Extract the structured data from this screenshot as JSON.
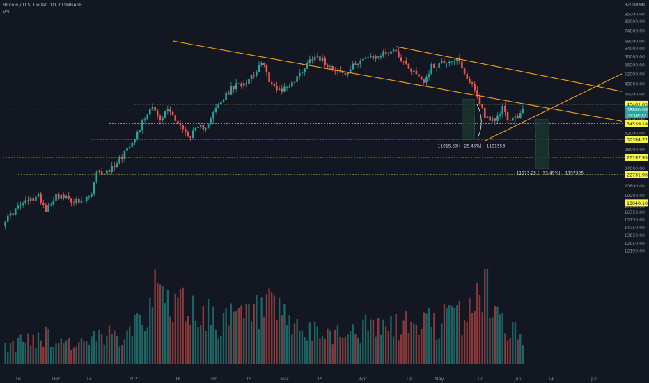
{
  "header": {
    "symbol_line": "Bitcoin / U.S. Dollar, 1D, COINBASE",
    "indicator": "Vol"
  },
  "colors": {
    "background": "#131722",
    "up": "#26a69a",
    "down": "#ef5350",
    "trendline": "#f7a21b",
    "level_line": "#c8c85a",
    "level_label_bg": "#f5f542",
    "current_label_bg": "#26a69a"
  },
  "chart_data": {
    "type": "candlestick",
    "price_scale": "log",
    "ylim": [
      11000,
      92000
    ],
    "currency_label": "USD",
    "y_ticks": [
      92000,
      85000,
      80000,
      74000,
      68000,
      64000,
      60000,
      56000,
      52000,
      48000,
      44000,
      40000,
      36000,
      32000,
      28000,
      24000,
      20800,
      19200,
      17600,
      16750,
      15750,
      14750,
      13850,
      12950,
      12190
    ],
    "x_ticks": [
      "16",
      "Dec",
      "14",
      "2021",
      "18",
      "Feb",
      "15",
      "Mar",
      "15",
      "Apr",
      "19",
      "May",
      "17",
      "Jun",
      "14",
      "Jul"
    ],
    "x_tick_dates": [
      "2020-11-16",
      "2020-12-01",
      "2020-12-14",
      "2021-01-01",
      "2021-01-18",
      "2021-02-01",
      "2021-02-15",
      "2021-03-01",
      "2021-03-15",
      "2021-04-01",
      "2021-04-19",
      "2021-05-01",
      "2021-05-17",
      "2021-06-01",
      "2021-06-14",
      "2021-07-01"
    ],
    "x_range": [
      "2020-11-10",
      "2021-07-12"
    ],
    "price_anchors": [
      [
        "2020-11-10",
        15300
      ],
      [
        "2020-11-17",
        17700
      ],
      [
        "2020-11-24",
        19100
      ],
      [
        "2020-11-27",
        17100
      ],
      [
        "2020-12-01",
        19200
      ],
      [
        "2020-12-11",
        18000
      ],
      [
        "2020-12-15",
        19300
      ],
      [
        "2020-12-17",
        22800
      ],
      [
        "2020-12-22",
        23500
      ],
      [
        "2020-12-27",
        26500
      ],
      [
        "2021-01-02",
        32000
      ],
      [
        "2021-01-08",
        40500
      ],
      [
        "2021-01-11",
        35000
      ],
      [
        "2021-01-14",
        39000
      ],
      [
        "2021-01-22",
        31000
      ],
      [
        "2021-01-26",
        33000
      ],
      [
        "2021-01-29",
        34000
      ],
      [
        "2021-02-08",
        46000
      ],
      [
        "2021-02-14",
        49000
      ],
      [
        "2021-02-21",
        57000
      ],
      [
        "2021-02-23",
        48000
      ],
      [
        "2021-02-28",
        45500
      ],
      [
        "2021-03-05",
        49000
      ],
      [
        "2021-03-13",
        61000
      ],
      [
        "2021-03-17",
        57000
      ],
      [
        "2021-03-25",
        51500
      ],
      [
        "2021-03-31",
        58800
      ],
      [
        "2021-04-05",
        59000
      ],
      [
        "2021-04-13",
        63500
      ],
      [
        "2021-04-18",
        56000
      ],
      [
        "2021-04-25",
        49000
      ],
      [
        "2021-04-28",
        55000
      ],
      [
        "2021-05-03",
        57500
      ],
      [
        "2021-05-08",
        58600
      ],
      [
        "2021-05-12",
        49000
      ],
      [
        "2021-05-13",
        49500
      ],
      [
        "2021-05-19",
        37000
      ],
      [
        "2021-05-23",
        34700
      ],
      [
        "2021-05-26",
        39500
      ],
      [
        "2021-05-29",
        35000
      ],
      [
        "2021-06-01",
        36700
      ],
      [
        "2021-06-03",
        38880
      ]
    ],
    "volume_anchors": [
      [
        "2020-11-10",
        0.15
      ],
      [
        "2020-11-24",
        0.3
      ],
      [
        "2020-12-10",
        0.2
      ],
      [
        "2020-12-25",
        0.3
      ],
      [
        "2021-01-04",
        0.55
      ],
      [
        "2021-01-11",
        0.75
      ],
      [
        "2021-01-29",
        0.5
      ],
      [
        "2021-02-08",
        0.45
      ],
      [
        "2021-02-23",
        0.55
      ],
      [
        "2021-03-10",
        0.3
      ],
      [
        "2021-04-18",
        0.4
      ],
      [
        "2021-05-12",
        0.5
      ],
      [
        "2021-05-19",
        0.9
      ],
      [
        "2021-05-23",
        0.55
      ],
      [
        "2021-06-03",
        0.25
      ]
    ],
    "trendlines": [
      {
        "name": "upper-channel",
        "from": [
          "2021-04-14",
          65000
        ],
        "to": [
          "2021-07-12",
          45000
        ]
      },
      {
        "name": "lower-channel",
        "from": [
          "2021-01-16",
          68000
        ],
        "to": [
          "2021-07-12",
          35200
        ]
      },
      {
        "name": "rising-support",
        "from": [
          "2021-05-19",
          30000
        ],
        "to": [
          "2021-07-12",
          52000
        ]
      }
    ],
    "horizontal_levels": [
      {
        "price": 40461.63,
        "label": "40461.63",
        "from": "2021-01-01"
      },
      {
        "price": 34539.18,
        "label": "34539.18",
        "from": "2020-12-22"
      },
      {
        "price": 30394.72,
        "label": "30394.72",
        "from": "2020-12-15"
      },
      {
        "price": 26197.95,
        "label": "26197.95",
        "from": "2020-11-10"
      },
      {
        "price": 22731.96,
        "label": "22731.96",
        "from": "2020-11-16"
      },
      {
        "price": 18040.1,
        "label": "18040.10",
        "from": "2020-11-10"
      }
    ],
    "current_price": {
      "label": "38880.00",
      "countdown": "06:19:00",
      "price": 38880
    },
    "measures": [
      {
        "from_date": "2021-05-10",
        "to_date": "2021-05-15",
        "top": 42200,
        "bottom": 30250,
        "text": "−11915.53 (−28.45%) −1191553",
        "text_date": "2021-05-13",
        "text_price": 28500
      },
      {
        "from_date": "2021-06-08",
        "to_date": "2021-06-13",
        "top": 35700,
        "bottom": 23900,
        "text": "−11973.25 (−33.49%) −1197325",
        "text_date": "2021-06-13",
        "text_price": 22800
      }
    ]
  }
}
